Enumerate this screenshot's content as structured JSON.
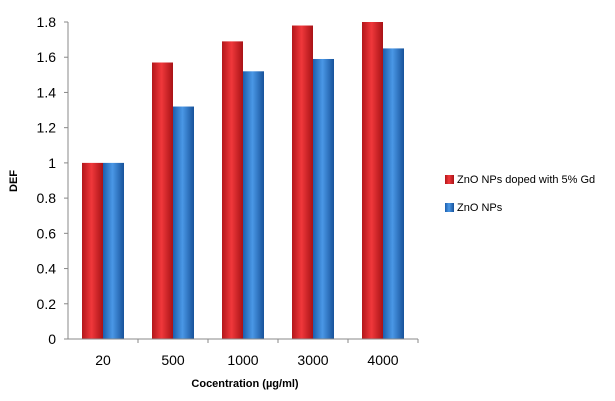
{
  "chart_data": {
    "type": "bar",
    "title": "",
    "xlabel": "Cocentration (µg/ml)",
    "ylabel": "DEF",
    "categories": [
      "20",
      "500",
      "1000",
      "3000",
      "4000"
    ],
    "series": [
      {
        "name": "ZnO NPs doped with 5% Gd",
        "values": [
          1.0,
          1.57,
          1.69,
          1.78,
          1.8
        ],
        "color": "#e8262a"
      },
      {
        "name": "ZnO NPs",
        "values": [
          1.0,
          1.32,
          1.52,
          1.59,
          1.65
        ],
        "color": "#2e7fd6"
      }
    ],
    "ylim": [
      0,
      1.8
    ],
    "yticks": [
      "0",
      "0.2",
      "0.4",
      "0.6",
      "0.8",
      "1",
      "1.2",
      "1.4",
      "1.6",
      "1.8"
    ],
    "grid": false,
    "legend": "right"
  }
}
